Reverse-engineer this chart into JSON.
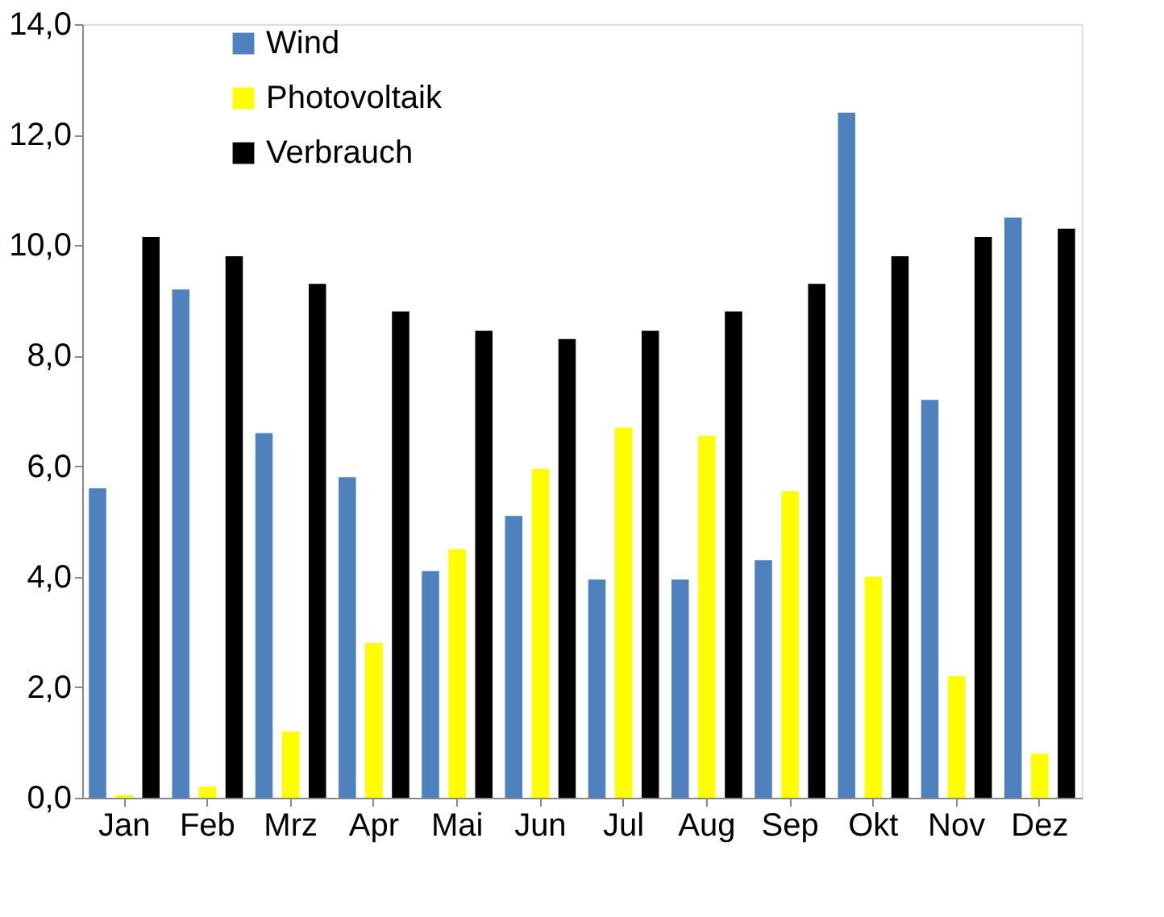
{
  "chart_data": {
    "type": "bar",
    "categories": [
      "Jan",
      "Feb",
      "Mrz",
      "Apr",
      "Mai",
      "Jun",
      "Jul",
      "Aug",
      "Sep",
      "Okt",
      "Nov",
      "Dez"
    ],
    "series": [
      {
        "name": "Wind",
        "color": "#4f81bd",
        "values": [
          5.6,
          9.2,
          6.6,
          5.8,
          4.1,
          5.1,
          3.95,
          3.95,
          4.3,
          12.4,
          7.2,
          10.5
        ]
      },
      {
        "name": "Photovoltaik",
        "color": "#ffff00",
        "values": [
          0.05,
          0.2,
          1.2,
          2.8,
          4.5,
          5.95,
          6.7,
          6.55,
          5.55,
          4.0,
          2.2,
          0.8
        ]
      },
      {
        "name": "Verbrauch",
        "color": "#000000",
        "values": [
          10.15,
          9.8,
          9.3,
          8.8,
          8.45,
          8.3,
          8.45,
          8.8,
          9.3,
          9.8,
          10.15,
          10.3
        ]
      }
    ],
    "ylim": [
      0,
      14
    ],
    "yticks": [
      {
        "value": 0,
        "label": "0,0"
      },
      {
        "value": 2,
        "label": "2,0"
      },
      {
        "value": 4,
        "label": "4,0"
      },
      {
        "value": 6,
        "label": "6,0"
      },
      {
        "value": 8,
        "label": "8,0"
      },
      {
        "value": 10,
        "label": "10,0"
      },
      {
        "value": 12,
        "label": "12,0"
      },
      {
        "value": 14,
        "label": "14,0"
      }
    ],
    "grid": false,
    "legend": "top left"
  }
}
